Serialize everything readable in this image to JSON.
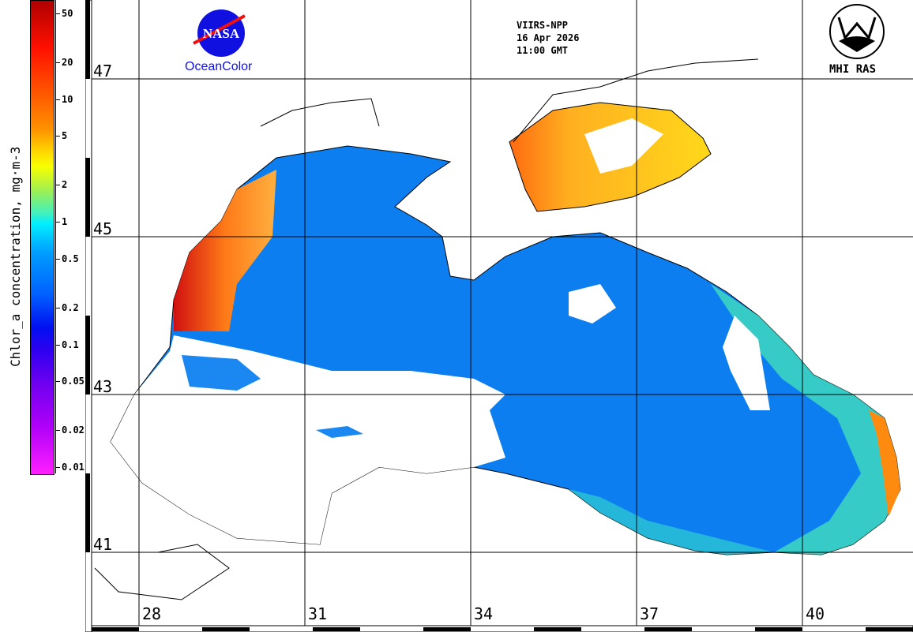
{
  "colorbar": {
    "title": "Chlor_a concentration, mg·m-3",
    "ticks": [
      {
        "label": "50",
        "value": 50
      },
      {
        "label": "20",
        "value": 20
      },
      {
        "label": "10",
        "value": 10
      },
      {
        "label": "5",
        "value": 5
      },
      {
        "label": "2",
        "value": 2
      },
      {
        "label": "1",
        "value": 1
      },
      {
        "label": "0.5",
        "value": 0.5
      },
      {
        "label": "0.2",
        "value": 0.2
      },
      {
        "label": "0.1",
        "value": 0.1
      },
      {
        "label": "0.05",
        "value": 0.05
      },
      {
        "label": "0.02",
        "value": 0.02
      },
      {
        "label": "0.01",
        "value": 0.01
      }
    ]
  },
  "header": {
    "sensor": "VIIRS-NPP",
    "date": "16 Apr 2026",
    "time": "11:00 GMT"
  },
  "logos": {
    "nasa": "NASA",
    "oceancolor": "OceanColor",
    "mhi": "MHI RAS"
  },
  "grid": {
    "latitudes": [
      "47",
      "45",
      "43",
      "41"
    ],
    "longitudes": [
      "28",
      "31",
      "34",
      "37",
      "40"
    ]
  },
  "colors": {
    "sea_low": "#0a7cf0",
    "shelf_high": "#ff7010",
    "azov": "#ffd21a",
    "cloud": "#ffffff"
  }
}
